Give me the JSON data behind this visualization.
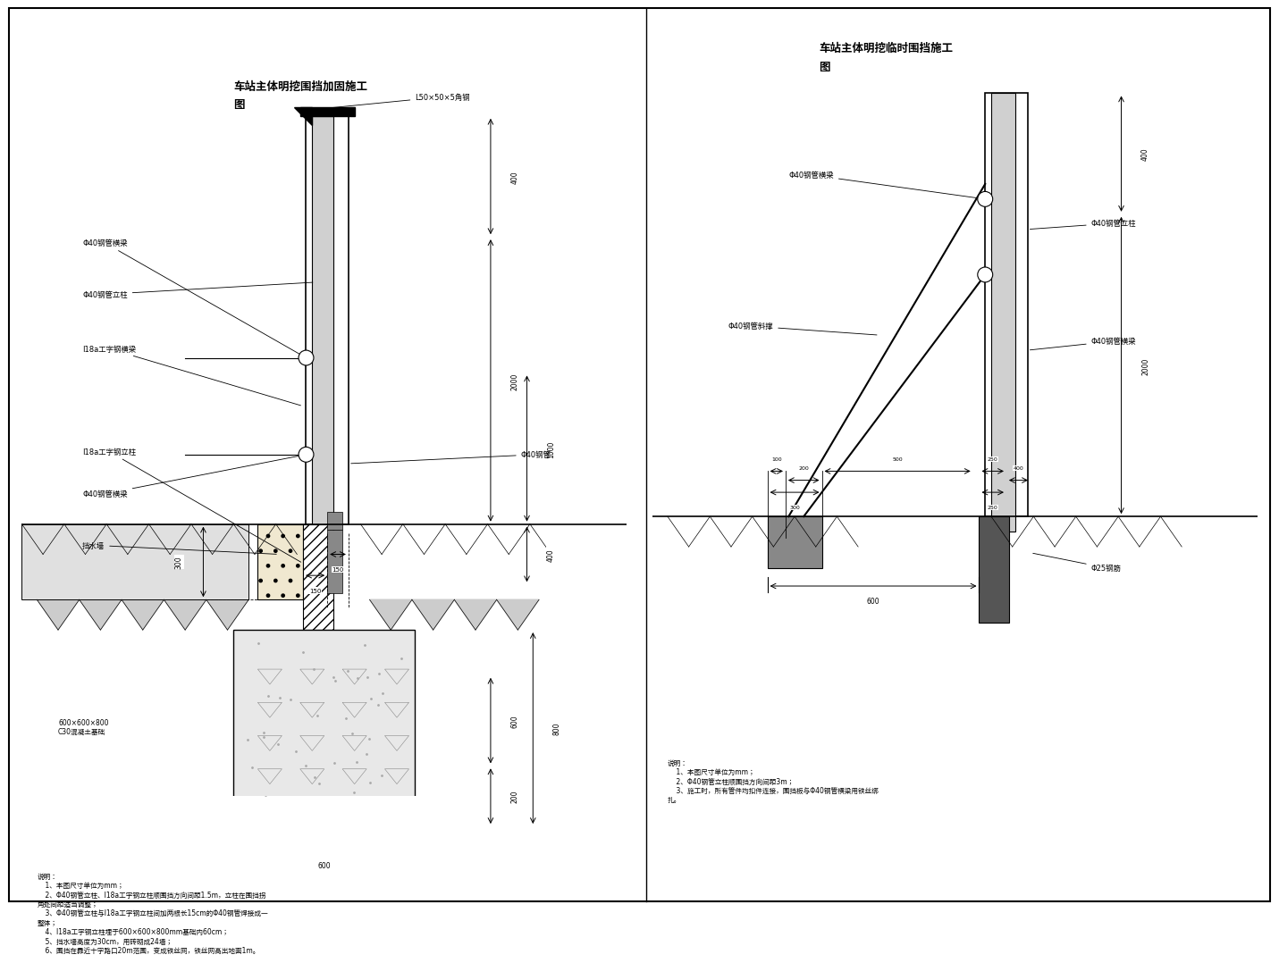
{
  "bg_color": "#ffffff",
  "line_color": "#000000",
  "title1": "车站主体明挖围挡加固施工\n图",
  "title2": "车站主体明挖临时围挡施工\n图",
  "notes1": "说明：\n    1、本图尺寸单位为mm；\n    2、Φ40钢管立柱、I18a工字钢立柱顺围挡方向间距1.5m，立柱在围挡拐\n角处间距适当调整；\n    3、Φ40钢管立柱与I18a工字钢立柱间加两根长15cm的Φ40钢管焊接成一\n整体；\n    4、I18a工字钢立柱埋于600×600×800mm基础内60cm；\n    5、挡水墙高度为30cm，用砖砌成24墙；\n    6、围挡在靠近十字路口20m范围，变成铁丝网，铁丝网高出地面1m。",
  "notes2": "说明：\n    1、本图尺寸单位为mm；\n    2、Φ40钢管立柱顺围挡方向间距3m；\n    3、施工时，所有管件均扣件连接，围挡板与Φ40钢管横梁用铁丝绑\n扎。"
}
